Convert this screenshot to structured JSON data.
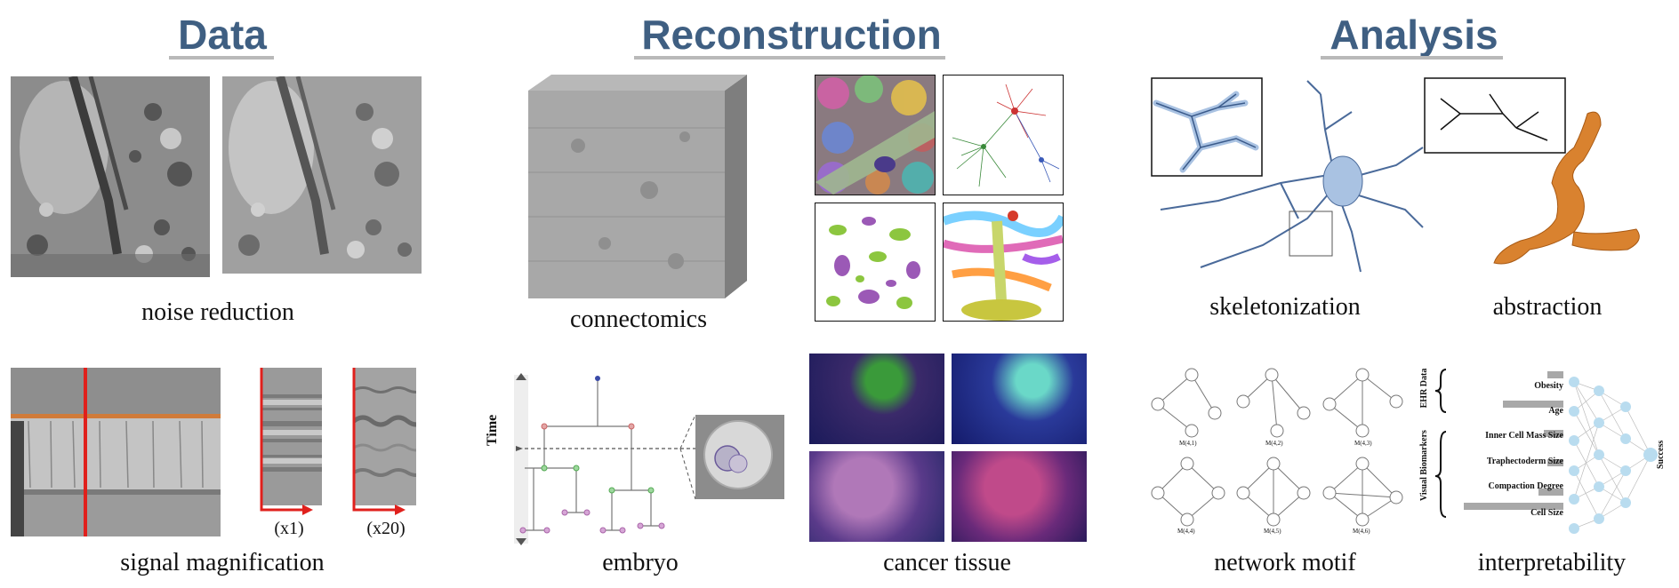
{
  "sections": {
    "data": "Data",
    "reconstruction": "Reconstruction",
    "analysis": "Analysis"
  },
  "captions": {
    "noise_reduction": "noise reduction",
    "signal_magnification": "signal magnification",
    "x1": "(x1)",
    "x20": "(x20)",
    "connectomics": "connectomics",
    "embryo": "embryo",
    "cancer_tissue": "cancer tissue",
    "skeletonization": "skeletonization",
    "abstraction": "abstraction",
    "network_motif": "network motif",
    "interpretability": "interpretability"
  },
  "embryo": {
    "axis_label": "Time"
  },
  "motifs": [
    "M(4,1)",
    "M(4,2)",
    "M(4,3)",
    "M(4,4)",
    "M(4,5)",
    "M(4,6)"
  ],
  "interpretability": {
    "group1": "EHR Data",
    "group2": "Visual Biomarkers",
    "features": [
      "Obesity",
      "Age",
      "Inner Cell Mass Size",
      "Traphectoderm Size",
      "Compaction Degree",
      "Cell Size"
    ],
    "output": "Success"
  },
  "colors": {
    "title": "#3f5f82",
    "accent_red": "#e0201c",
    "neuron": "#a9c2e2",
    "abstraction": "#d9822f"
  }
}
